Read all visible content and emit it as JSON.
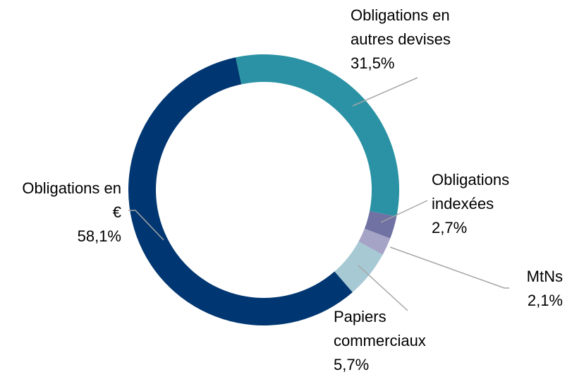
{
  "chart_data": {
    "type": "donut",
    "categories": [
      "Obligations en autres devises",
      "Obligations indexées",
      "MtNs",
      "Papiers commerciaux",
      "Obligations en €"
    ],
    "values": [
      31.5,
      2.7,
      2.1,
      5.7,
      58.1
    ],
    "value_labels": [
      "31,5%",
      "2,7%",
      "2,1%",
      "5,7%",
      "58,1%"
    ],
    "colors": [
      "#2a92a4",
      "#6f72a2",
      "#a5a3c6",
      "#a7c9d4",
      "#003671"
    ]
  }
}
